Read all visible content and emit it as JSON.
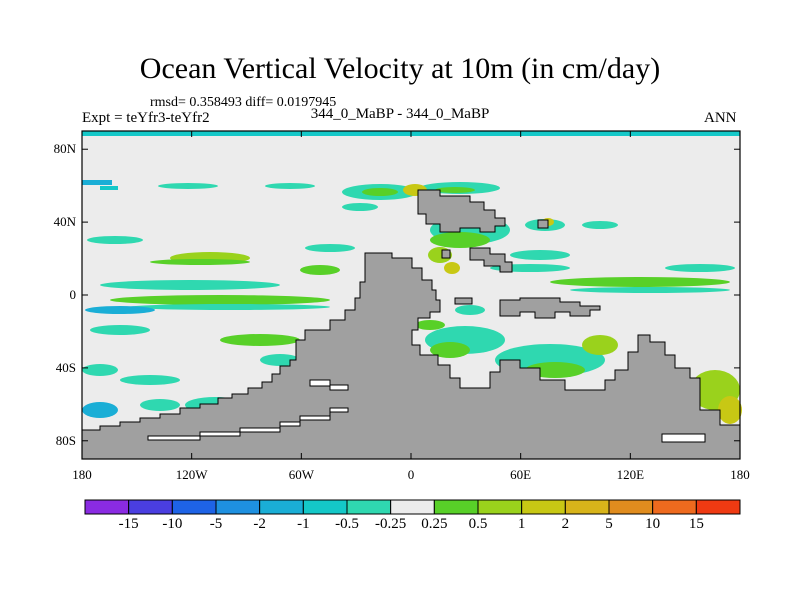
{
  "title": "Ocean Vertical Velocity at 10m (in cm/day)",
  "stats": "rmsd= 0.358493 diff= 0.0197945",
  "expt": "Expt = teYfr3-teYfr2",
  "center_label": "344_0_MaBP - 344_0_MaBP",
  "season": "ANN",
  "map": {
    "lon_range": [
      -180,
      180
    ],
    "lat_range": [
      -90,
      90
    ],
    "y_ticks": [
      {
        "lat": 80,
        "label": "80N"
      },
      {
        "lat": 40,
        "label": "40N"
      },
      {
        "lat": 0,
        "label": "0"
      },
      {
        "lat": -40,
        "label": "40S"
      },
      {
        "lat": -80,
        "label": "80S"
      }
    ],
    "x_ticks": [
      {
        "lon": -180,
        "label": "180"
      },
      {
        "lon": -120,
        "label": "120W"
      },
      {
        "lon": -60,
        "label": "60W"
      },
      {
        "lon": 0,
        "label": "0"
      },
      {
        "lon": 60,
        "label": "60E"
      },
      {
        "lon": 120,
        "label": "120E"
      },
      {
        "lon": 180,
        "label": "180"
      }
    ]
  },
  "colorbar": {
    "colors": [
      "#8a2be2",
      "#4a3ee0",
      "#1e63e6",
      "#1e90e0",
      "#1aaed6",
      "#14c8c8",
      "#2fd8b0",
      "#ececec",
      "#58d028",
      "#9ad21c",
      "#c8c814",
      "#d8b41a",
      "#e08c1e",
      "#ee6a1e",
      "#ef3a12"
    ],
    "labels": [
      "-15",
      "-10",
      "-5",
      "-2",
      "-1",
      "-0.5",
      "-0.25",
      "0.25",
      "0.5",
      "1",
      "2",
      "5",
      "10",
      "15"
    ]
  },
  "colors": {
    "land": "#a0a0a0",
    "background_field": "#ececec",
    "outline": "#000000"
  }
}
